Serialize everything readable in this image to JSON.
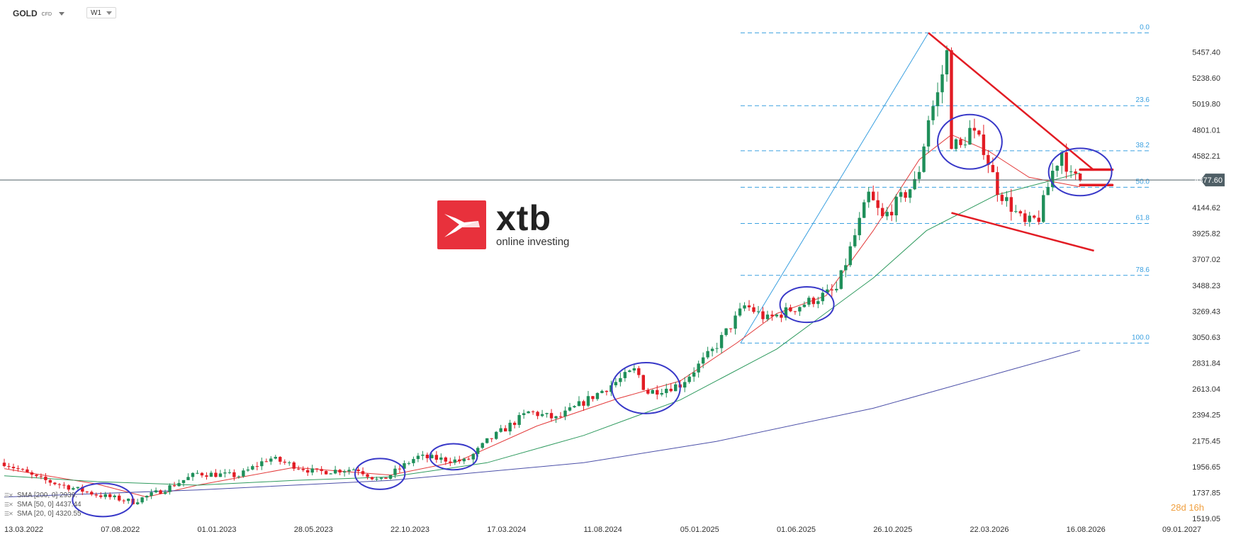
{
  "header": {
    "symbol": "GOLD",
    "symbol_tag": "CFD",
    "timeframe": "W1"
  },
  "logo": {
    "word": "xtb",
    "tagline": "online investing"
  },
  "legend": [
    {
      "label": "SMA [200, 0] 2939.",
      "color": "#4b4fa8"
    },
    {
      "label": "SMA [50, 0] 4437.44",
      "color": "#2e9a5e"
    },
    {
      "label": "SMA [20, 0] 4320.55",
      "color": "#e33a3a"
    }
  ],
  "countdown": {
    "days": "28",
    "d_unit": "d",
    "hours": "16",
    "h_unit": "h"
  },
  "colors": {
    "bull": "#1f8f5a",
    "bear": "#e21c24",
    "sma20": "#e33a3a",
    "sma50": "#2e9a5e",
    "sma200": "#4b4fa8",
    "fib": "#3aa0e0",
    "circles": "#3838c8",
    "trendlines": "#e21c24",
    "price_line": "#4f5f66"
  },
  "chart_data": {
    "type": "candlestick",
    "instrument": "GOLD",
    "timeframe": "W1",
    "x_range": [
      "2022-03-13",
      "2027-01-09"
    ],
    "xlabels": [
      "13.03.2022",
      "07.08.2022",
      "01.01.2023",
      "28.05.2023",
      "22.10.2023",
      "17.03.2024",
      "11.08.2024",
      "05.01.2025",
      "01.06.2025",
      "26.10.2025",
      "22.03.2026",
      "16.08.2026",
      "09.01.2027"
    ],
    "ylabels": [
      "5457.40",
      "5238.60",
      "5019.80",
      "4801.01",
      "4582.21",
      "4144.62",
      "3925.82",
      "3707.02",
      "3488.23",
      "3269.43",
      "3050.63",
      "2831.84",
      "2613.04",
      "2394.25",
      "2175.45",
      "1956.65",
      "1737.85",
      "1519.05"
    ],
    "y_range": [
      1519.05,
      5700
    ],
    "current_price": "4377.60",
    "price_path": [
      [
        "2022-03-13",
        1990
      ],
      [
        "2022-05-01",
        1860
      ],
      [
        "2022-08-01",
        1720
      ],
      [
        "2022-09-25",
        1660
      ],
      [
        "2022-11-10",
        1760
      ],
      [
        "2023-01-01",
        1900
      ],
      [
        "2023-03-05",
        1880
      ],
      [
        "2023-04-20",
        2030
      ],
      [
        "2023-06-30",
        1910
      ],
      [
        "2023-09-01",
        1940
      ],
      [
        "2023-10-06",
        1830
      ],
      [
        "2023-12-01",
        2040
      ],
      [
        "2024-02-14",
        2000
      ],
      [
        "2024-03-17",
        2170
      ],
      [
        "2024-05-20",
        2420
      ],
      [
        "2024-07-01",
        2360
      ],
      [
        "2024-09-26",
        2660
      ],
      [
        "2024-10-30",
        2780
      ],
      [
        "2024-11-14",
        2580
      ],
      [
        "2025-01-05",
        2650
      ],
      [
        "2025-02-24",
        2940
      ],
      [
        "2025-04-14",
        3320
      ],
      [
        "2025-05-18",
        3200
      ],
      [
        "2025-07-20",
        3350
      ],
      [
        "2025-08-31",
        3450
      ],
      [
        "2025-10-19",
        4250
      ],
      [
        "2025-11-09",
        4050
      ],
      [
        "2025-12-28",
        4350
      ],
      [
        "2026-01-04",
        4470
      ],
      [
        "2026-01-18",
        4900
      ],
      [
        "2026-02-01",
        5100
      ],
      [
        "2026-02-15",
        5450
      ],
      [
        "2026-02-22",
        4700
      ],
      [
        "2026-03-08",
        4650
      ],
      [
        "2026-03-22",
        4800
      ],
      [
        "2026-04-12",
        4650
      ],
      [
        "2026-05-03",
        4300
      ],
      [
        "2026-05-24",
        4150
      ],
      [
        "2026-06-14",
        4000
      ],
      [
        "2026-07-05",
        4060
      ],
      [
        "2026-07-26",
        4450
      ],
      [
        "2026-08-09",
        4620
      ],
      [
        "2026-08-23",
        4400
      ],
      [
        "2026-09-06",
        4377
      ]
    ],
    "sma": [
      {
        "name": "SMA [20, 0]",
        "color": "#e33a3a",
        "points": [
          [
            "2022-03-13",
            1940
          ],
          [
            "2022-08-01",
            1810
          ],
          [
            "2022-10-16",
            1700
          ],
          [
            "2023-01-01",
            1800
          ],
          [
            "2023-05-28",
            1950
          ],
          [
            "2023-10-22",
            1885
          ],
          [
            "2024-02-01",
            2000
          ],
          [
            "2024-06-01",
            2300
          ],
          [
            "2024-10-01",
            2530
          ],
          [
            "2025-01-05",
            2680
          ],
          [
            "2025-04-01",
            3000
          ],
          [
            "2025-06-01",
            3250
          ],
          [
            "2025-08-15",
            3400
          ],
          [
            "2025-10-26",
            3950
          ],
          [
            "2026-01-04",
            4550
          ],
          [
            "2026-02-22",
            4760
          ],
          [
            "2026-04-20",
            4620
          ],
          [
            "2026-06-20",
            4400
          ],
          [
            "2026-09-06",
            4320
          ]
        ]
      },
      {
        "name": "SMA [50, 0]",
        "color": "#2e9a5e",
        "points": [
          [
            "2022-03-13",
            1880
          ],
          [
            "2022-08-01",
            1830
          ],
          [
            "2023-01-01",
            1800
          ],
          [
            "2023-05-28",
            1840
          ],
          [
            "2023-10-22",
            1870
          ],
          [
            "2024-03-17",
            1990
          ],
          [
            "2024-08-11",
            2220
          ],
          [
            "2025-01-05",
            2520
          ],
          [
            "2025-06-01",
            2950
          ],
          [
            "2025-10-26",
            3550
          ],
          [
            "2026-01-15",
            3950
          ],
          [
            "2026-05-01",
            4250
          ],
          [
            "2026-09-06",
            4437
          ]
        ]
      },
      {
        "name": "SMA [200, 0]",
        "color": "#4b4fa8",
        "points": [
          [
            "2022-03-13",
            1700
          ],
          [
            "2023-01-01",
            1760
          ],
          [
            "2023-10-22",
            1840
          ],
          [
            "2024-08-11",
            1990
          ],
          [
            "2025-03-01",
            2170
          ],
          [
            "2025-10-26",
            2450
          ],
          [
            "2026-05-01",
            2740
          ],
          [
            "2026-09-06",
            2939
          ]
        ]
      }
    ],
    "fibonacci": [
      {
        "label": "0.0",
        "price": 5620
      },
      {
        "label": "23.6",
        "price": 5005
      },
      {
        "label": "38.2",
        "price": 4624
      },
      {
        "label": "50.0",
        "price": 4316
      },
      {
        "label": "61.8",
        "price": 4010
      },
      {
        "label": "78.6",
        "price": 3572
      },
      {
        "label": "100.0",
        "price": 3000
      }
    ],
    "fib_leg": {
      "from": [
        "2025-04-07",
        3000
      ],
      "to": [
        "2026-01-18",
        5620
      ]
    },
    "trendlines": [
      {
        "from": [
          "2026-01-18",
          5620
        ],
        "to": [
          "2026-09-27",
          4460
        ]
      },
      {
        "from": [
          "2026-02-22",
          4100
        ],
        "to": [
          "2026-09-27",
          3780
        ]
      }
    ],
    "horizontal_marks": [
      {
        "price": 4465,
        "from": "2026-09-06",
        "to": "2026-10-25"
      },
      {
        "price": 4335,
        "from": "2026-09-06",
        "to": "2026-10-25"
      }
    ],
    "highlight_circles": [
      {
        "center": [
          "2022-08-10",
          1675
        ],
        "rx_days": 46,
        "ry_price": 140
      },
      {
        "center": [
          "2023-10-06",
          1895
        ],
        "rx_days": 38,
        "ry_price": 130
      },
      {
        "center": [
          "2024-01-26",
          2040
        ],
        "rx_days": 36,
        "ry_price": 110
      },
      {
        "center": [
          "2024-11-14",
          2620
        ],
        "rx_days": 52,
        "ry_price": 215
      },
      {
        "center": [
          "2025-07-17",
          3325
        ],
        "rx_days": 41,
        "ry_price": 150
      },
      {
        "center": [
          "2026-03-22",
          4700
        ],
        "rx_days": 49,
        "ry_price": 230
      },
      {
        "center": [
          "2026-09-06",
          4445
        ],
        "rx_days": 48,
        "ry_price": 200
      }
    ]
  }
}
